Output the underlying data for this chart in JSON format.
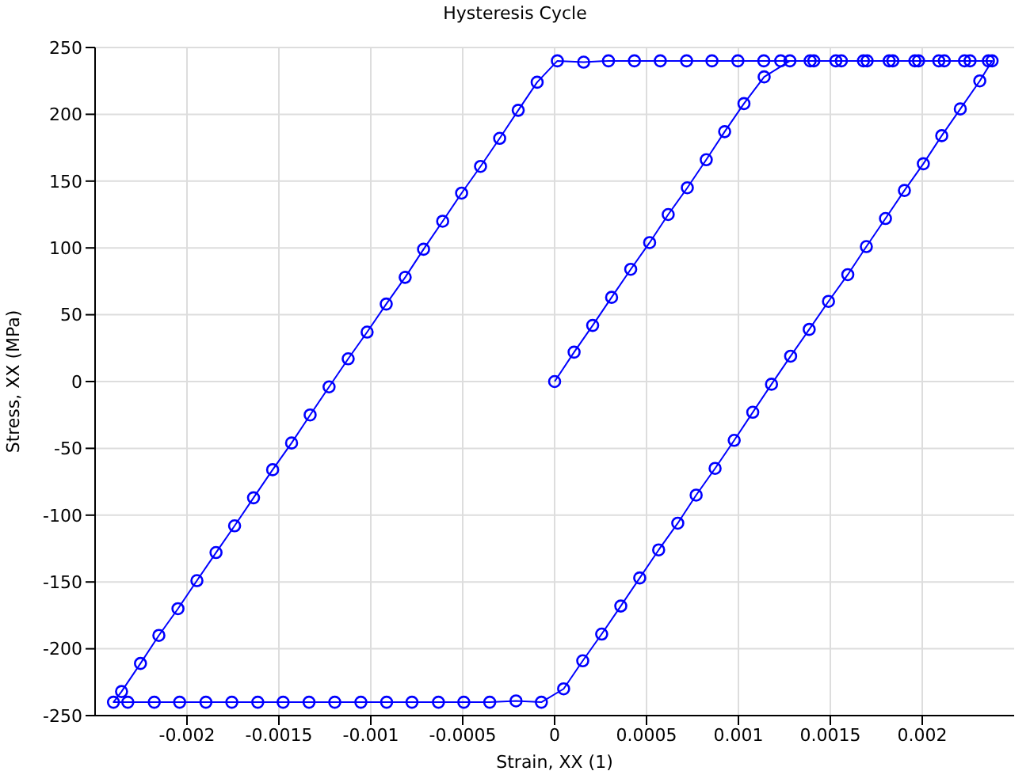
{
  "chart_data": {
    "type": "line",
    "title": "Hysteresis Cycle",
    "xlabel": "Strain, XX (1)",
    "ylabel": "Stress, XX (MPa)",
    "xlim": [
      -0.0025,
      0.0025
    ],
    "ylim": [
      -250,
      250
    ],
    "xticks": [
      -0.002,
      -0.0015,
      -0.001,
      -0.0005,
      0,
      0.0005,
      0.001,
      0.0015,
      0.002
    ],
    "yticks": [
      -250,
      -200,
      -150,
      -100,
      -50,
      0,
      50,
      100,
      150,
      200,
      250
    ],
    "grid": true,
    "marker": "circle",
    "line_style": "solid",
    "series": [
      {
        "color": "#0000ff",
        "x": [
          0,
          0.000106,
          0.000207,
          0.00031,
          0.000414,
          0.000517,
          0.000618,
          0.000722,
          0.000825,
          0.000925,
          0.00103,
          0.00114,
          0.00128,
          0.00141,
          0.00156,
          0.0017,
          0.00184,
          0.00198,
          0.00212,
          0.00226,
          0.00238,
          0.002313,
          0.002207,
          0.002106,
          0.002006,
          0.001903,
          0.0018,
          0.001696,
          0.001595,
          0.00149,
          0.001385,
          0.001284,
          0.00118,
          0.001078,
          0.000977,
          0.000873,
          0.00077,
          0.00067,
          0.000566,
          0.000463,
          0.00036,
          0.000256,
          0.000153,
          4.9e-05,
          -7.2e-05,
          -0.00021,
          -0.000353,
          -0.000494,
          -0.000632,
          -0.000776,
          -0.000914,
          -0.001054,
          -0.001196,
          -0.001336,
          -0.001477,
          -0.001615,
          -0.001756,
          -0.001897,
          -0.00204,
          -0.002178,
          -0.002322,
          -0.0024,
          -0.002356,
          -0.002253,
          -0.002153,
          -0.002049,
          -0.001946,
          -0.001842,
          -0.001741,
          -0.001638,
          -0.001534,
          -0.001431,
          -0.00133,
          -0.001227,
          -0.001123,
          -0.00102,
          -0.000916,
          -0.000813,
          -0.000713,
          -0.000609,
          -0.000506,
          -0.000403,
          -0.000299,
          -0.000198,
          -9.5e-05,
          1.5e-05,
          0.000158,
          0.000293,
          0.000434,
          0.000575,
          0.000718,
          0.000856,
          0.000997,
          0.001138,
          0.00123,
          0.00139,
          0.00153,
          0.00168,
          0.00182,
          0.00196,
          0.00209,
          0.00223,
          0.00236
        ],
        "values": [
          0,
          22,
          42,
          63,
          84,
          104,
          125,
          145,
          166,
          187,
          208,
          228,
          240,
          240,
          240,
          240,
          240,
          240,
          240,
          240,
          240,
          225,
          204,
          184,
          163,
          143,
          122,
          101,
          80,
          60,
          39,
          19,
          -2,
          -23,
          -44,
          -65,
          -85,
          -106,
          -126,
          -147,
          -168,
          -189,
          -209,
          -230,
          -240,
          -239,
          -240,
          -240,
          -240,
          -240,
          -240,
          -240,
          -240,
          -240,
          -240,
          -240,
          -240,
          -240,
          -240,
          -240,
          -240,
          -240,
          -232,
          -211,
          -190,
          -170,
          -149,
          -128,
          -108,
          -87,
          -66,
          -46,
          -25,
          -4,
          17,
          37,
          58,
          78,
          99,
          120,
          141,
          161,
          182,
          203,
          224,
          240,
          239,
          240,
          240,
          240,
          240,
          240,
          240,
          240,
          240,
          240,
          240,
          240,
          240,
          240,
          240,
          240,
          240
        ]
      }
    ]
  }
}
